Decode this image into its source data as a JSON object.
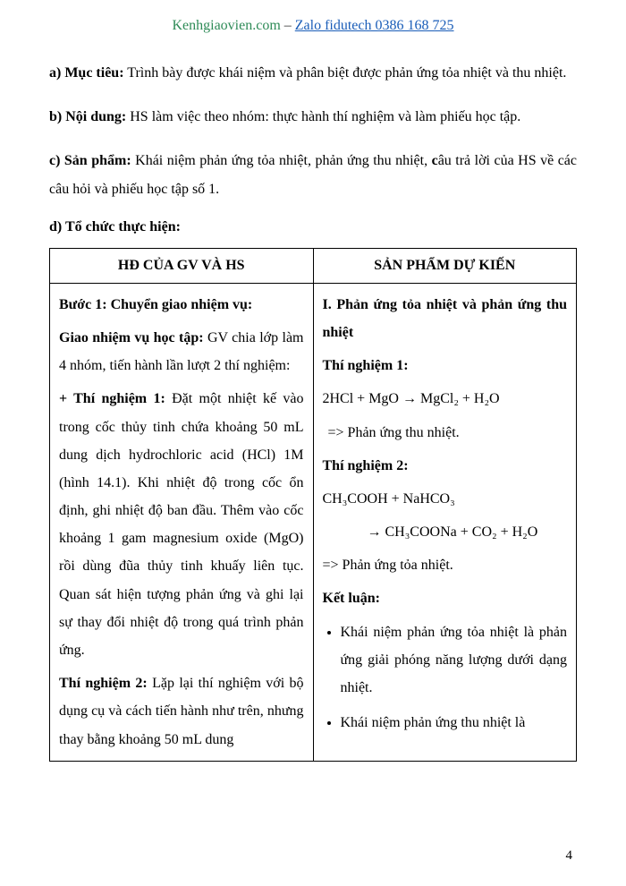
{
  "header": {
    "site": "Kenhgiaovien.com",
    "dash": " – ",
    "link": "Zalo fidutech 0386 168 725"
  },
  "sections": {
    "a_label": "a) Mục tiêu:",
    "a_text": " Trình bày được khái niệm và phân biệt được phản ứng tỏa nhiệt và thu nhiệt.",
    "b_label": "b) Nội dung:",
    "b_text": " HS làm việc theo nhóm: thực hành thí nghiệm và làm phiếu học tập.",
    "c_label": "c) Sản phẩm:",
    "c_text_1": " Khái niệm phản ứng tỏa nhiệt, phản ứng thu nhiệt, ",
    "c_bold": "c",
    "c_text_2": "âu trả lời của HS về các câu hỏi và phiếu học tập số 1.",
    "d_label": "d) Tổ chức thực hiện:"
  },
  "table": {
    "header_left": "HĐ CỦA GV VÀ HS",
    "header_right": "SẢN PHẨM DỰ KIẾN",
    "left": {
      "step1_label": "Bước 1: Chuyển giao nhiệm vụ:",
      "assign_label": "Giao nhiệm vụ học tập:",
      "assign_text": " GV chia lớp làm 4 nhóm, tiến hành lần lượt 2 thí nghiệm:",
      "exp1_label": "+ Thí nghiệm 1:",
      "exp1_text": " Đặt một nhiệt kế vào trong cốc thủy tinh chứa khoảng 50 mL dung dịch hydrochloric acid (HCl) 1M (hình 14.1). Khi nhiệt độ trong cốc ổn định, ghi nhiệt độ ban đầu. Thêm vào cốc khoảng 1 gam magnesium oxide (MgO) rồi dùng đũa thủy tinh khuấy liên tục. Quan sát hiện tượng phản ứng và ghi lại sự thay đổi nhiệt độ trong quá trình phản ứng.",
      "exp2_label": "Thí nghiệm 2:",
      "exp2_text": " Lặp lại thí nghiệm với bộ dụng cụ và cách tiến hành như trên, nhưng thay bằng khoảng 50 mL dung"
    },
    "right": {
      "title": "I. Phản ứng tỏa nhiệt và phản ứng thu nhiệt",
      "exp1_label": "Thí nghiệm 1:",
      "eq1": "2HCl + MgO → MgCl₂ + H₂O",
      "eq1_result": "  => Phản ứng thu nhiệt.",
      "exp2_label": "Thí nghiệm 2:",
      "eq2a": " CH₃COOH + NaHCO₃",
      "eq2b": "→ CH₃COONa + CO₂ + H₂O",
      "eq2_result": "=> Phản ứng tỏa nhiệt.",
      "conclusion_label": "Kết luận:",
      "bullet1": "Khái niệm phản ứng tỏa nhiệt là phản ứng giải phóng năng lượng dưới dạng nhiệt.",
      "bullet2": "Khái niệm phản ứng thu nhiệt là"
    }
  },
  "page_number": "4"
}
